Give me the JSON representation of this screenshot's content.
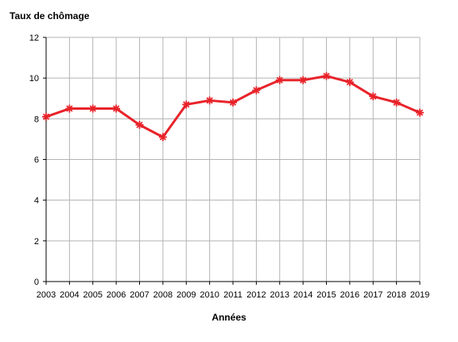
{
  "chart_data": {
    "type": "line",
    "title": "",
    "ylabel": "Taux de chômage",
    "xlabel": "Années",
    "x": [
      2003,
      2004,
      2005,
      2006,
      2007,
      2008,
      2009,
      2010,
      2011,
      2012,
      2013,
      2014,
      2015,
      2016,
      2017,
      2018,
      2019
    ],
    "series": [
      {
        "name": "",
        "color": "#e8232a",
        "marker": "star",
        "values": [
          8.1,
          8.5,
          8.5,
          8.5,
          7.7,
          7.1,
          8.7,
          8.9,
          8.8,
          9.4,
          9.9,
          9.9,
          10.1,
          9.8,
          9.1,
          8.8,
          8.3
        ]
      }
    ],
    "ylim": [
      0,
      12
    ],
    "yticks": [
      0,
      2,
      4,
      6,
      8,
      10,
      12
    ],
    "grid": true,
    "legend": "none",
    "colors": {
      "line": "#e8232a",
      "grid": "#b3b3b3",
      "axis": "#000000"
    }
  }
}
